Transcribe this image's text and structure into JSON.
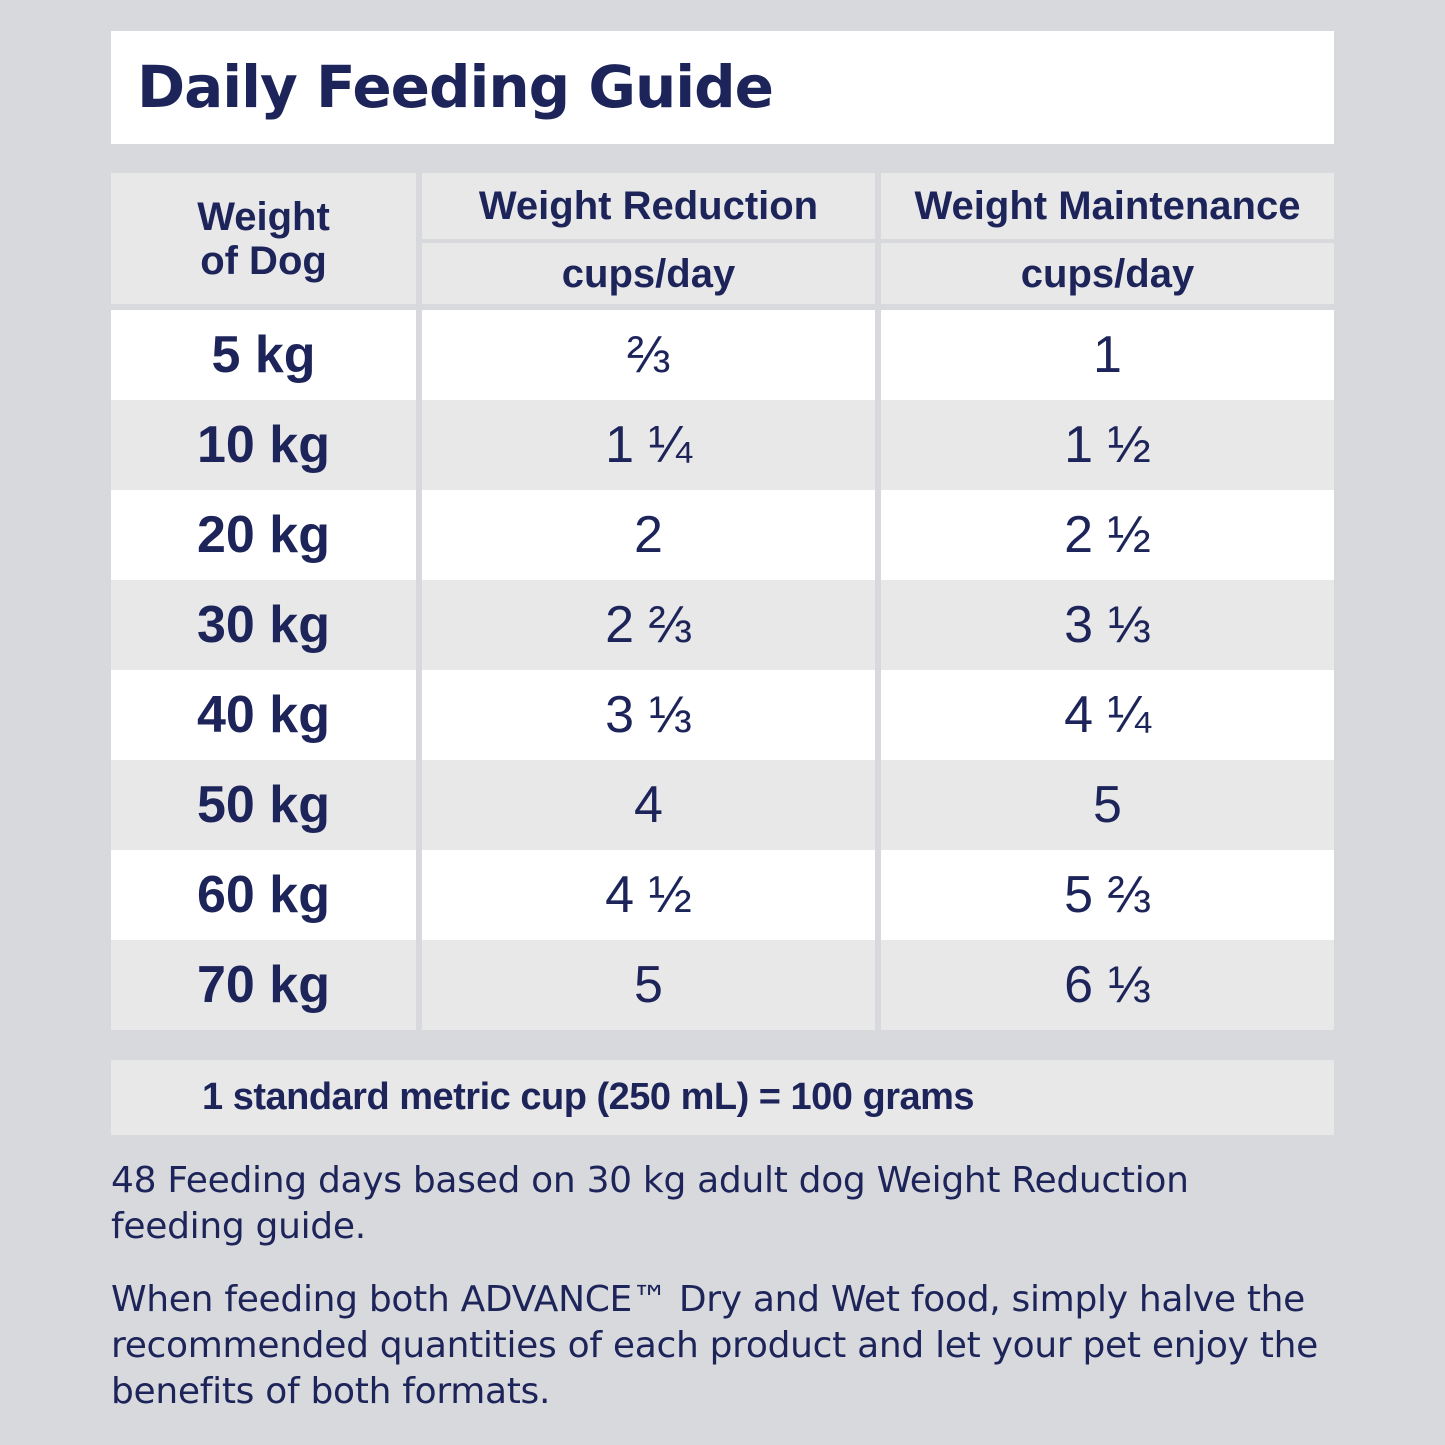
{
  "title": "Daily Feeding Guide",
  "table": {
    "headers": {
      "weight_line1": "Weight",
      "weight_line2": "of Dog",
      "reduction": "Weight Reduction",
      "reduction_unit": "cups/day",
      "maintenance": "Weight Maintenance",
      "maintenance_unit": "cups/day"
    },
    "rows": [
      {
        "weight": "5 kg",
        "reduction": "⅔",
        "maintenance": "1"
      },
      {
        "weight": "10 kg",
        "reduction": "1 ¼",
        "maintenance": "1 ½"
      },
      {
        "weight": "20 kg",
        "reduction": "2",
        "maintenance": "2 ½"
      },
      {
        "weight": "30 kg",
        "reduction": "2 ⅔",
        "maintenance": "3 ⅓"
      },
      {
        "weight": "40 kg",
        "reduction": "3 ⅓",
        "maintenance": "4 ¼"
      },
      {
        "weight": "50 kg",
        "reduction": "4",
        "maintenance": "5"
      },
      {
        "weight": "60 kg",
        "reduction": "4 ½",
        "maintenance": "5 ⅔"
      },
      {
        "weight": "70 kg",
        "reduction": "5",
        "maintenance": "6 ⅓"
      }
    ]
  },
  "note": "1 standard metric cup (250 mL) = 100 grams",
  "paragraph1": "48 Feeding days based on 30 kg adult dog Weight Reduction feeding guide.",
  "paragraph2": "When feeding both ADVANCE™ Dry and Wet food, simply halve the recommended quantities of each product and let your pet enjoy the benefits of both formats."
}
